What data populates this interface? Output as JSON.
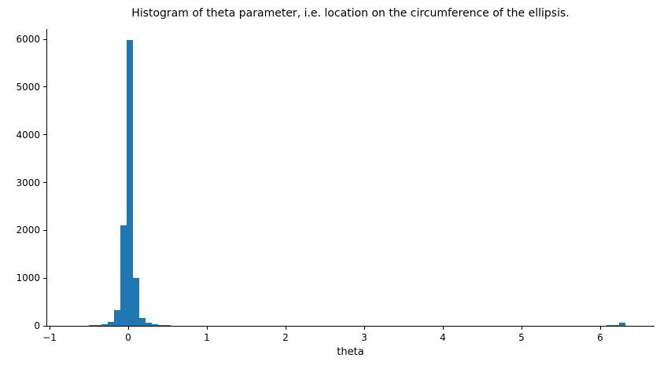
{
  "chart_data": {
    "type": "bar",
    "title": "Histogram of theta parameter, i.e. location on the circumference of the ellipsis.",
    "xlabel": "theta",
    "ylabel": "",
    "bar_color": "#1f77b4",
    "grid": false,
    "legend": false,
    "xlim": [
      -1.04,
      6.69
    ],
    "ylim": [
      0,
      6214
    ],
    "x_ticks": [
      -1,
      0,
      1,
      2,
      3,
      4,
      5,
      6
    ],
    "x_tick_labels": [
      "−1",
      "0",
      "1",
      "2",
      "3",
      "4",
      "5",
      "6"
    ],
    "y_ticks": [
      0,
      1000,
      2000,
      3000,
      4000,
      5000,
      6000
    ],
    "y_tick_labels": [
      "0",
      "1000",
      "2000",
      "3000",
      "4000",
      "5000",
      "6000"
    ],
    "bin_width": 0.08,
    "bins": [
      {
        "x0": -0.5,
        "x1": -0.42,
        "count": 15
      },
      {
        "x0": -0.42,
        "x1": -0.34,
        "count": 18
      },
      {
        "x0": -0.34,
        "x1": -0.26,
        "count": 25
      },
      {
        "x0": -0.26,
        "x1": -0.18,
        "count": 77
      },
      {
        "x0": -0.18,
        "x1": -0.1,
        "count": 325
      },
      {
        "x0": -0.1,
        "x1": -0.02,
        "count": 2100
      },
      {
        "x0": -0.02,
        "x1": 0.06,
        "count": 5985
      },
      {
        "x0": 0.06,
        "x1": 0.14,
        "count": 995
      },
      {
        "x0": 0.14,
        "x1": 0.22,
        "count": 170
      },
      {
        "x0": 0.22,
        "x1": 0.3,
        "count": 72
      },
      {
        "x0": 0.3,
        "x1": 0.38,
        "count": 28
      },
      {
        "x0": 0.38,
        "x1": 0.46,
        "count": 18
      },
      {
        "x0": 0.46,
        "x1": 0.54,
        "count": 15
      },
      {
        "x0": 6.08,
        "x1": 6.16,
        "count": 18
      },
      {
        "x0": 6.16,
        "x1": 6.24,
        "count": 22
      },
      {
        "x0": 6.24,
        "x1": 6.32,
        "count": 70
      }
    ]
  }
}
